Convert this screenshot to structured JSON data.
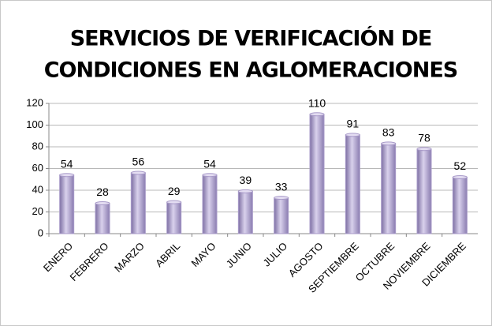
{
  "chart_data": {
    "type": "bar",
    "title": [
      "SERVICIOS DE VERIFICACIÓN DE",
      "CONDICIONES EN AGLOMERACIONES"
    ],
    "categories": [
      "ENERO",
      "FEBRERO",
      "MARZO",
      "ABRIL",
      "MAYO",
      "JUNIO",
      "JULIO",
      "AGOSTO",
      "SEPTIEMBRE",
      "OCTUBRE",
      "NOVIEMBRE",
      "DICIEMBRE"
    ],
    "values": [
      54,
      28,
      56,
      29,
      54,
      39,
      33,
      110,
      91,
      83,
      78,
      52
    ],
    "color": "#a99bc9",
    "ylim": [
      0,
      120
    ],
    "yticks": [
      0,
      20,
      40,
      60,
      80,
      100,
      120
    ],
    "grid": true
  }
}
